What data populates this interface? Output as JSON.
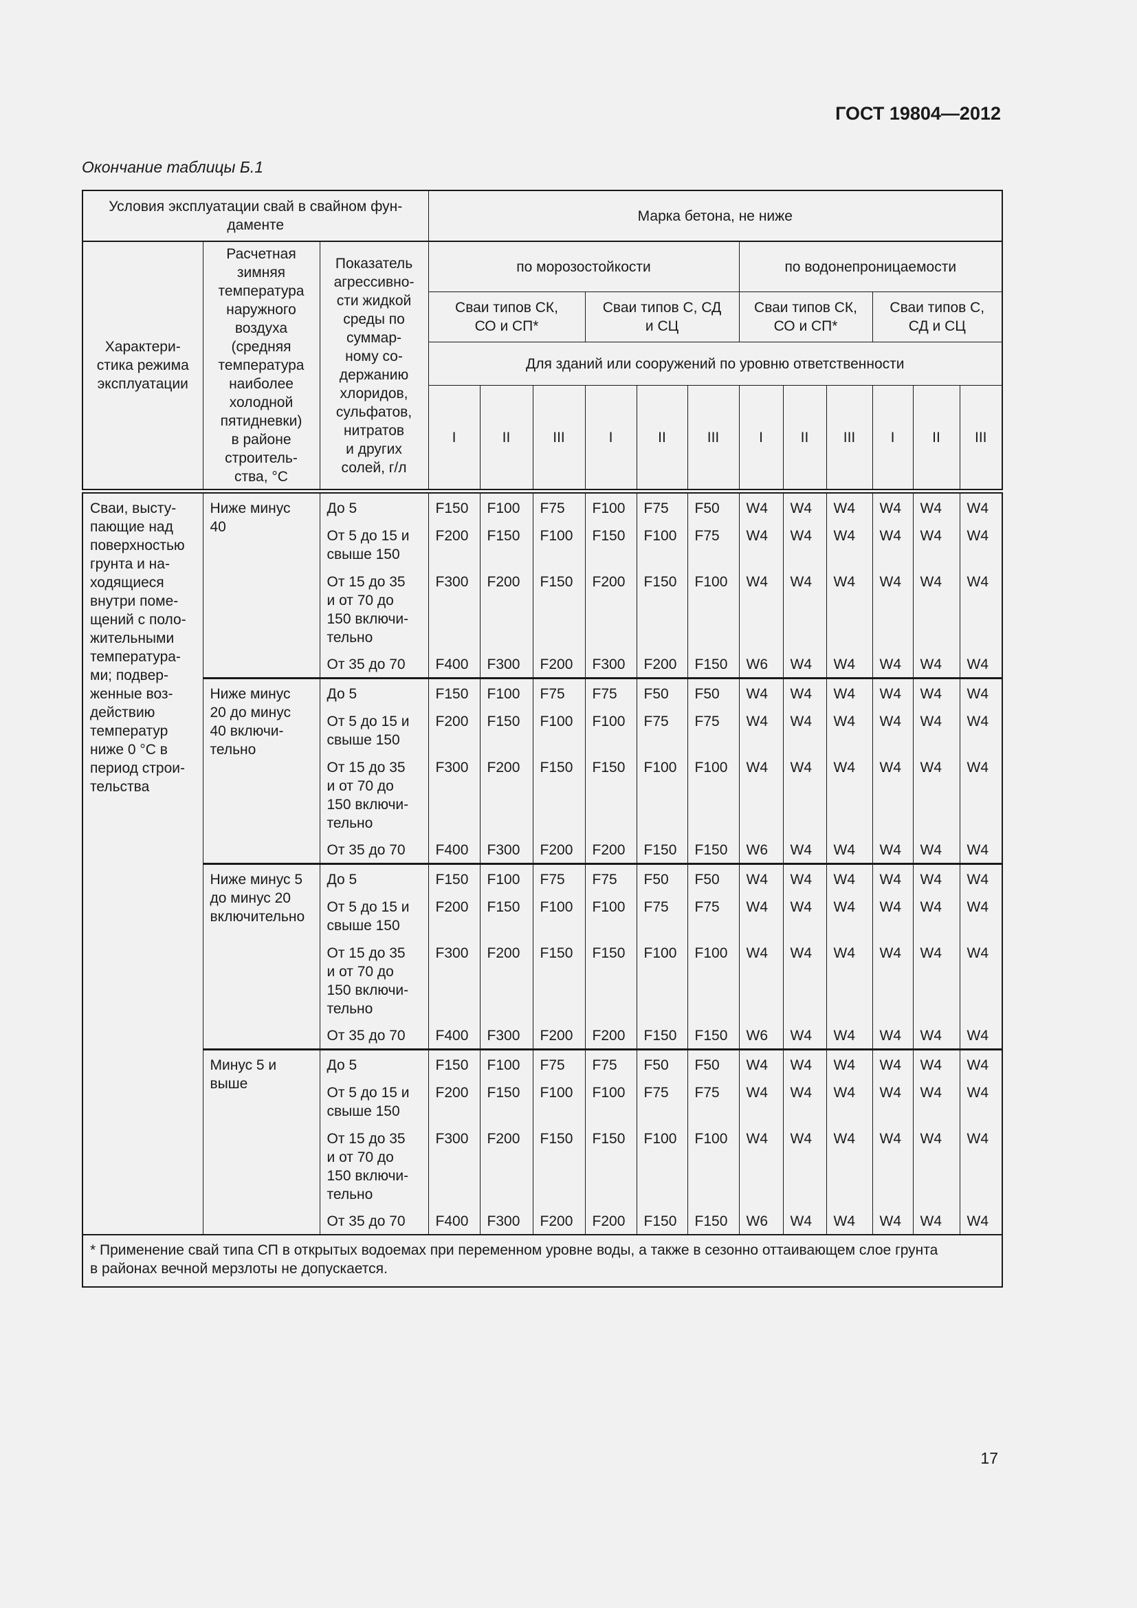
{
  "header": {
    "doc_code": "ГОСТ 19804—2012",
    "caption": "Окончание таблицы Б.1",
    "page_number": "17"
  },
  "table": {
    "conditions_header": "Условия эксплуатации свай в свайном фун-\nдаменте",
    "grade_header": "Марка бетона, не ниже",
    "col_mode": "Характери-\nстика режима\nэксплуатации",
    "col_temp": "Расчетная\nзимняя\nтемпература\nнаружного\nвоздуха\n(средняя\nтемпература\nнаиболее\nхолодной\nпятидневки)\nв районе\nстроитель-\nства, °С",
    "col_aggr": "Показатель\nагрессивно-\nсти жидкой\nсреды по\nсуммар-\nному со-\nдержанию\nхлоридов,\nсульфатов,\nнитратов\nи других\nсолей, г/л",
    "frost": "по морозостойкости",
    "water": "по водонепроницаемости",
    "pile_types": [
      "Сваи типов СК,\nСО и СП*",
      "Сваи типов С, СД\nи СЦ",
      "Сваи типов СК,\nСО и СП*",
      "Сваи типов С,\nСД и СЦ"
    ],
    "responsibility": "Для зданий или сооружений по уровню ответственности",
    "levels": [
      "I",
      "II",
      "III",
      "I",
      "II",
      "III",
      "I",
      "II",
      "III",
      "I",
      "II",
      "III"
    ],
    "mode_text": "Сваи, высту-\nпающие над\nповерхностью\nгрунта и на-\nходящиеся\nвнутри поме-\nщений с поло-\nжительными\nтемпература-\nми; подвер-\nженные воз-\nдействию\nтемператур\nниже 0 °С в\nпериод строи-\nтельства",
    "groups": [
      {
        "temp": "Ниже минус\n40",
        "rows": [
          {
            "index": "До 5",
            "values": [
              "F150",
              "F100",
              "F75",
              "F100",
              "F75",
              "F50",
              "W4",
              "W4",
              "W4",
              "W4",
              "W4",
              "W4"
            ]
          },
          {
            "index": "От 5 до 15 и\nсвыше 150",
            "values": [
              "F200",
              "F150",
              "F100",
              "F150",
              "F100",
              "F75",
              "W4",
              "W4",
              "W4",
              "W4",
              "W4",
              "W4"
            ]
          },
          {
            "index": "От 15 до 35\nи от 70 до\n150 включи-\nтельно",
            "values": [
              "F300",
              "F200",
              "F150",
              "F200",
              "F150",
              "F100",
              "W4",
              "W4",
              "W4",
              "W4",
              "W4",
              "W4"
            ]
          },
          {
            "index": "От 35 до 70",
            "values": [
              "F400",
              "F300",
              "F200",
              "F300",
              "F200",
              "F150",
              "W6",
              "W4",
              "W4",
              "W4",
              "W4",
              "W4"
            ]
          }
        ]
      },
      {
        "temp": "Ниже минус\n20 до минус\n40 включи-\nтельно",
        "rows": [
          {
            "index": "До 5",
            "values": [
              "F150",
              "F100",
              "F75",
              "F75",
              "F50",
              "F50",
              "W4",
              "W4",
              "W4",
              "W4",
              "W4",
              "W4"
            ]
          },
          {
            "index": "От 5 до 15 и\nсвыше 150",
            "values": [
              "F200",
              "F150",
              "F100",
              "F100",
              "F75",
              "F75",
              "W4",
              "W4",
              "W4",
              "W4",
              "W4",
              "W4"
            ]
          },
          {
            "index": "От 15 до 35\nи от 70 до\n150 включи-\nтельно",
            "values": [
              "F300",
              "F200",
              "F150",
              "F150",
              "F100",
              "F100",
              "W4",
              "W4",
              "W4",
              "W4",
              "W4",
              "W4"
            ]
          },
          {
            "index": "От 35 до 70",
            "values": [
              "F400",
              "F300",
              "F200",
              "F200",
              "F150",
              "F150",
              "W6",
              "W4",
              "W4",
              "W4",
              "W4",
              "W4"
            ]
          }
        ]
      },
      {
        "temp": "Ниже минус 5\nдо минус 20\nвключительно",
        "rows": [
          {
            "index": "До 5",
            "values": [
              "F150",
              "F100",
              "F75",
              "F75",
              "F50",
              "F50",
              "W4",
              "W4",
              "W4",
              "W4",
              "W4",
              "W4"
            ]
          },
          {
            "index": "От 5 до 15 и\nсвыше 150",
            "values": [
              "F200",
              "F150",
              "F100",
              "F100",
              "F75",
              "F75",
              "W4",
              "W4",
              "W4",
              "W4",
              "W4",
              "W4"
            ]
          },
          {
            "index": "От 15 до 35\nи от 70 до\n150 включи-\nтельно",
            "values": [
              "F300",
              "F200",
              "F150",
              "F150",
              "F100",
              "F100",
              "W4",
              "W4",
              "W4",
              "W4",
              "W4",
              "W4"
            ]
          },
          {
            "index": "От 35 до 70",
            "values": [
              "F400",
              "F300",
              "F200",
              "F200",
              "F150",
              "F150",
              "W6",
              "W4",
              "W4",
              "W4",
              "W4",
              "W4"
            ]
          }
        ]
      },
      {
        "temp": "Минус 5 и\nвыше",
        "rows": [
          {
            "index": "До 5",
            "values": [
              "F150",
              "F100",
              "F75",
              "F75",
              "F50",
              "F50",
              "W4",
              "W4",
              "W4",
              "W4",
              "W4",
              "W4"
            ]
          },
          {
            "index": "От 5 до 15 и\nсвыше 150",
            "values": [
              "F200",
              "F150",
              "F100",
              "F100",
              "F75",
              "F75",
              "W4",
              "W4",
              "W4",
              "W4",
              "W4",
              "W4"
            ]
          },
          {
            "index": "От 15 до 35\nи от 70 до\n150 включи-\nтельно",
            "values": [
              "F300",
              "F200",
              "F150",
              "F150",
              "F100",
              "F100",
              "W4",
              "W4",
              "W4",
              "W4",
              "W4",
              "W4"
            ]
          },
          {
            "index": "От 35 до 70",
            "values": [
              "F400",
              "F300",
              "F200",
              "F200",
              "F150",
              "F150",
              "W6",
              "W4",
              "W4",
              "W4",
              "W4",
              "W4"
            ]
          }
        ]
      }
    ],
    "footnote": "* Применение свай типа СП в открытых водоемах при переменном уровне воды, а также в сезонно оттаивающем слое грунта\nв районах вечной мерзлоты не допускается."
  }
}
